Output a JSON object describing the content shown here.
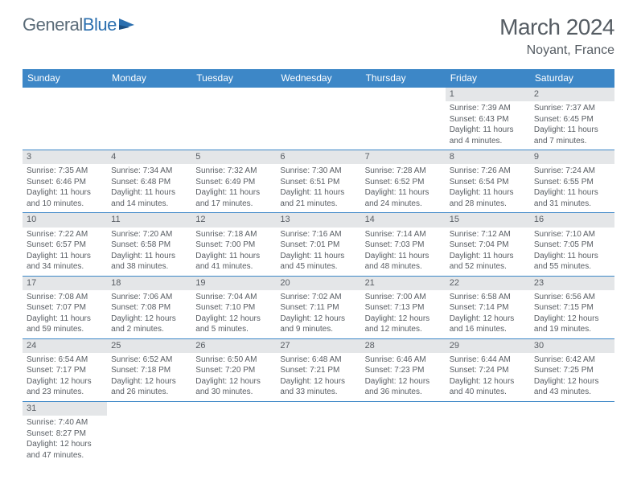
{
  "header": {
    "logo_part1": "General",
    "logo_part2": "Blue",
    "month_title": "March 2024",
    "location": "Noyant, France"
  },
  "style": {
    "header_bg": "#3d87c7",
    "header_text": "#ffffff",
    "daynum_bg": "#e4e6e8",
    "text_color": "#585d63",
    "border_color": "#3d87c7",
    "logo_gray": "#5a6b78",
    "logo_blue": "#2b6faf",
    "title_fontsize": 28,
    "location_fontsize": 16,
    "dayheader_fontsize": 12,
    "daynum_fontsize": 11,
    "daytext_fontsize": 10
  },
  "day_headers": [
    "Sunday",
    "Monday",
    "Tuesday",
    "Wednesday",
    "Thursday",
    "Friday",
    "Saturday"
  ],
  "weeks": [
    [
      null,
      null,
      null,
      null,
      null,
      {
        "n": "1",
        "sr": "7:39 AM",
        "ss": "6:43 PM",
        "dl": "11 hours and 4 minutes."
      },
      {
        "n": "2",
        "sr": "7:37 AM",
        "ss": "6:45 PM",
        "dl": "11 hours and 7 minutes."
      }
    ],
    [
      {
        "n": "3",
        "sr": "7:35 AM",
        "ss": "6:46 PM",
        "dl": "11 hours and 10 minutes."
      },
      {
        "n": "4",
        "sr": "7:34 AM",
        "ss": "6:48 PM",
        "dl": "11 hours and 14 minutes."
      },
      {
        "n": "5",
        "sr": "7:32 AM",
        "ss": "6:49 PM",
        "dl": "11 hours and 17 minutes."
      },
      {
        "n": "6",
        "sr": "7:30 AM",
        "ss": "6:51 PM",
        "dl": "11 hours and 21 minutes."
      },
      {
        "n": "7",
        "sr": "7:28 AM",
        "ss": "6:52 PM",
        "dl": "11 hours and 24 minutes."
      },
      {
        "n": "8",
        "sr": "7:26 AM",
        "ss": "6:54 PM",
        "dl": "11 hours and 28 minutes."
      },
      {
        "n": "9",
        "sr": "7:24 AM",
        "ss": "6:55 PM",
        "dl": "11 hours and 31 minutes."
      }
    ],
    [
      {
        "n": "10",
        "sr": "7:22 AM",
        "ss": "6:57 PM",
        "dl": "11 hours and 34 minutes."
      },
      {
        "n": "11",
        "sr": "7:20 AM",
        "ss": "6:58 PM",
        "dl": "11 hours and 38 minutes."
      },
      {
        "n": "12",
        "sr": "7:18 AM",
        "ss": "7:00 PM",
        "dl": "11 hours and 41 minutes."
      },
      {
        "n": "13",
        "sr": "7:16 AM",
        "ss": "7:01 PM",
        "dl": "11 hours and 45 minutes."
      },
      {
        "n": "14",
        "sr": "7:14 AM",
        "ss": "7:03 PM",
        "dl": "11 hours and 48 minutes."
      },
      {
        "n": "15",
        "sr": "7:12 AM",
        "ss": "7:04 PM",
        "dl": "11 hours and 52 minutes."
      },
      {
        "n": "16",
        "sr": "7:10 AM",
        "ss": "7:05 PM",
        "dl": "11 hours and 55 minutes."
      }
    ],
    [
      {
        "n": "17",
        "sr": "7:08 AM",
        "ss": "7:07 PM",
        "dl": "11 hours and 59 minutes."
      },
      {
        "n": "18",
        "sr": "7:06 AM",
        "ss": "7:08 PM",
        "dl": "12 hours and 2 minutes."
      },
      {
        "n": "19",
        "sr": "7:04 AM",
        "ss": "7:10 PM",
        "dl": "12 hours and 5 minutes."
      },
      {
        "n": "20",
        "sr": "7:02 AM",
        "ss": "7:11 PM",
        "dl": "12 hours and 9 minutes."
      },
      {
        "n": "21",
        "sr": "7:00 AM",
        "ss": "7:13 PM",
        "dl": "12 hours and 12 minutes."
      },
      {
        "n": "22",
        "sr": "6:58 AM",
        "ss": "7:14 PM",
        "dl": "12 hours and 16 minutes."
      },
      {
        "n": "23",
        "sr": "6:56 AM",
        "ss": "7:15 PM",
        "dl": "12 hours and 19 minutes."
      }
    ],
    [
      {
        "n": "24",
        "sr": "6:54 AM",
        "ss": "7:17 PM",
        "dl": "12 hours and 23 minutes."
      },
      {
        "n": "25",
        "sr": "6:52 AM",
        "ss": "7:18 PM",
        "dl": "12 hours and 26 minutes."
      },
      {
        "n": "26",
        "sr": "6:50 AM",
        "ss": "7:20 PM",
        "dl": "12 hours and 30 minutes."
      },
      {
        "n": "27",
        "sr": "6:48 AM",
        "ss": "7:21 PM",
        "dl": "12 hours and 33 minutes."
      },
      {
        "n": "28",
        "sr": "6:46 AM",
        "ss": "7:23 PM",
        "dl": "12 hours and 36 minutes."
      },
      {
        "n": "29",
        "sr": "6:44 AM",
        "ss": "7:24 PM",
        "dl": "12 hours and 40 minutes."
      },
      {
        "n": "30",
        "sr": "6:42 AM",
        "ss": "7:25 PM",
        "dl": "12 hours and 43 minutes."
      }
    ],
    [
      {
        "n": "31",
        "sr": "7:40 AM",
        "ss": "8:27 PM",
        "dl": "12 hours and 47 minutes."
      },
      null,
      null,
      null,
      null,
      null,
      null
    ]
  ],
  "labels": {
    "sunrise": "Sunrise: ",
    "sunset": "Sunset: ",
    "daylight": "Daylight: "
  }
}
